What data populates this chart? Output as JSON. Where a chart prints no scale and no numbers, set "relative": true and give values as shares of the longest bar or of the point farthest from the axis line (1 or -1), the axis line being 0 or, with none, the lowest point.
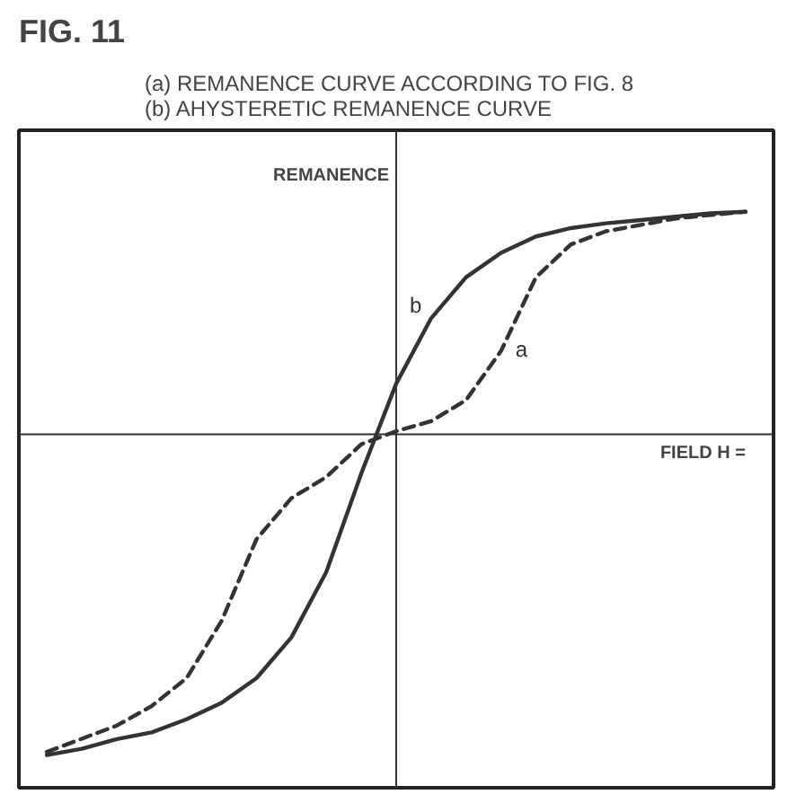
{
  "chart_data": {
    "type": "line",
    "title": "FIG. 11",
    "subtitle": "(a) REMANENCE CURVE ACCORDING TO FIG. 8\n(b) AHYSTERETIC REMANENCE CURVE",
    "xlabel": "FIELD H =",
    "ylabel": "REMANENCE",
    "relative": true,
    "grid": false,
    "marker": "none",
    "categories": [
      null,
      null,
      null,
      null,
      null,
      null,
      null,
      null,
      null,
      null,
      null,
      null,
      null,
      null,
      null,
      null,
      null,
      null,
      null,
      null,
      null
    ],
    "series": [
      {
        "name": "a",
        "color": "#333333",
        "line_style": "dashed",
        "values": [
          -0.99,
          -0.949,
          -0.908,
          -0.847,
          -0.76,
          -0.582,
          -0.327,
          -0.199,
          -0.133,
          -0.031,
          0.01,
          0.041,
          0.107,
          0.26,
          0.49,
          0.592,
          0.633,
          0.653,
          0.673,
          0.684,
          0.694
        ]
      },
      {
        "name": "b",
        "color": "#333333",
        "line_style": "solid",
        "values": [
          -1,
          -0.98,
          -0.95,
          -0.929,
          -0.888,
          -0.837,
          -0.76,
          -0.633,
          -0.429,
          -0.122,
          0.158,
          0.362,
          0.49,
          0.566,
          0.617,
          0.643,
          0.658,
          0.668,
          0.679,
          0.689,
          0.694
        ]
      }
    ]
  }
}
